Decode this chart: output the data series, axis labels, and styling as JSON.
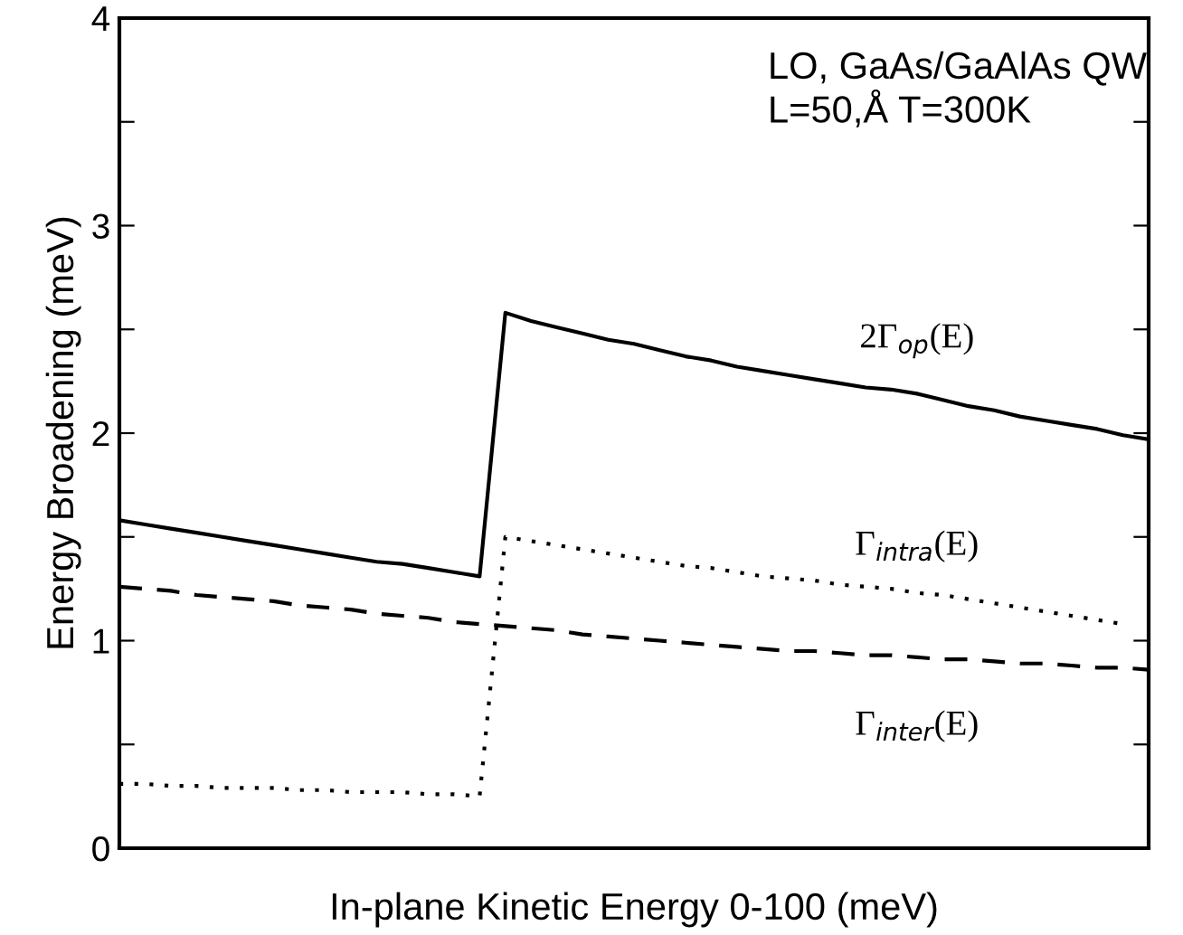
{
  "chart_data": {
    "type": "line",
    "xlabel": "In-plane Kinetic Energy 0-100 (meV)",
    "ylabel": "Energy Broadening (meV)",
    "annotations": [
      "LO, GaAs/GaAlAs QW\nL=50,Å T=300K"
    ],
    "categories": [
      null,
      null,
      null,
      null,
      null,
      null,
      null,
      null,
      null,
      null,
      null,
      null,
      null,
      null,
      null,
      null,
      null,
      null,
      null,
      null,
      null,
      null,
      null,
      null,
      null,
      null,
      null,
      null,
      null,
      null,
      null,
      null,
      null,
      null,
      null,
      null,
      null,
      null,
      null,
      null,
      null
    ],
    "ylim": [
      0,
      4
    ],
    "yticks": [
      0,
      {
        "value": 0.5,
        "label": null
      },
      1,
      {
        "value": 1.5,
        "label": null
      },
      2,
      {
        "value": 2.5,
        "label": null
      },
      3,
      {
        "value": 3.5,
        "label": null
      },
      4
    ],
    "grid": false,
    "legend": false,
    "tick_labels": "y",
    "series": [
      {
        "name": "2Γ$_{op}$(E)",
        "color": "#000000",
        "line_style": "solid",
        "values": [
          1.58,
          1.56,
          1.54,
          1.52,
          1.5,
          1.48,
          1.46,
          1.44,
          1.42,
          1.4,
          1.38,
          1.37,
          1.35,
          1.33,
          1.31,
          2.58,
          2.54,
          2.51,
          2.48,
          2.45,
          2.43,
          2.4,
          2.37,
          2.35,
          2.32,
          2.3,
          2.28,
          2.26,
          2.24,
          2.22,
          2.21,
          2.19,
          2.16,
          2.13,
          2.11,
          2.08,
          2.06,
          2.04,
          2.02,
          1.99,
          1.97
        ]
      },
      {
        "name": "Γ$_{intra}$(E)",
        "color": "#000000",
        "line_style": "dotted",
        "values": [
          0.31,
          0.31,
          0.3,
          0.3,
          0.29,
          0.29,
          0.29,
          0.28,
          0.28,
          0.27,
          0.27,
          0.27,
          0.26,
          0.26,
          0.25,
          1.5,
          1.48,
          1.46,
          1.44,
          1.42,
          1.4,
          1.38,
          1.36,
          1.35,
          1.33,
          1.31,
          1.3,
          1.29,
          1.27,
          1.26,
          1.25,
          1.23,
          1.22,
          1.2,
          1.18,
          1.16,
          1.14,
          1.12,
          1.1,
          1.08,
          null
        ]
      },
      {
        "name": "Γ$_{inter}$(E)",
        "color": "#000000",
        "line_style": "dashed",
        "values": [
          1.26,
          1.25,
          1.24,
          1.22,
          1.21,
          1.2,
          1.19,
          1.17,
          1.16,
          1.15,
          1.13,
          1.12,
          1.11,
          1.09,
          1.08,
          1.07,
          1.06,
          1.05,
          1.03,
          1.02,
          1.01,
          1.0,
          0.99,
          0.98,
          0.97,
          0.96,
          0.95,
          0.95,
          0.94,
          0.93,
          0.93,
          0.92,
          0.91,
          0.91,
          0.9,
          0.89,
          0.89,
          0.88,
          0.87,
          0.87,
          0.86
        ]
      }
    ]
  }
}
